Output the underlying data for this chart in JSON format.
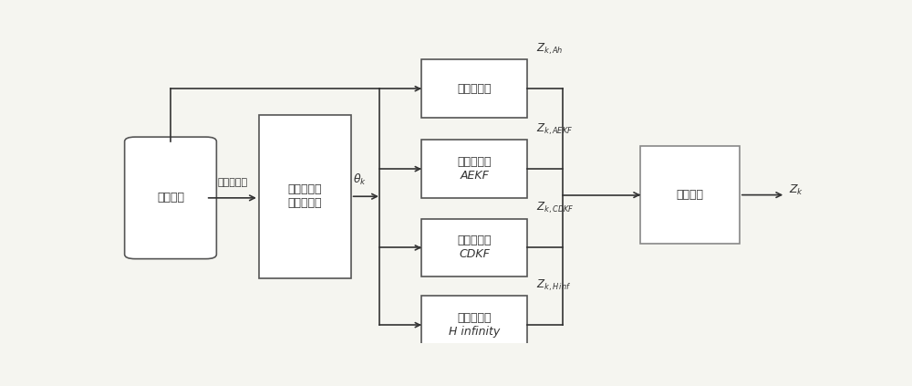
{
  "bg_color": "#f5f5f0",
  "box_edge_color": "#555555",
  "weight_edge_color": "#888888",
  "arrow_color": "#333333",
  "text_color": "#333333",
  "fig_width": 10.0,
  "fig_height": 4.23,
  "boxes": {
    "sample": [
      0.03,
      0.3,
      0.1,
      0.38
    ],
    "model": [
      0.205,
      0.22,
      0.13,
      0.55
    ],
    "ah": [
      0.435,
      0.76,
      0.15,
      0.195
    ],
    "aekf": [
      0.435,
      0.49,
      0.15,
      0.195
    ],
    "cdkf": [
      0.435,
      0.225,
      0.15,
      0.195
    ],
    "hinf": [
      0.435,
      -0.035,
      0.15,
      0.195
    ],
    "weight": [
      0.745,
      0.335,
      0.14,
      0.33
    ]
  },
  "labels": {
    "sample": "数据采样",
    "model": "建立动力电\n池系统模型",
    "ah": "安时积分法",
    "aekf": "状态观测器\nAEKF",
    "cdkf": "状态观测器\nCDKF",
    "hinf": "状态观测器\nH infinity",
    "weight": "加权计算"
  },
  "z_labels": {
    "ah": "Z_{k,Ah}",
    "aekf": "Z_{k,AEKF}",
    "cdkf": "Z_{k,CDKF}",
    "hinf": "Z_{k,H inf}"
  },
  "arrow_label": "电流，电压",
  "theta_label": "θ_k",
  "zk_label": "Z_k"
}
